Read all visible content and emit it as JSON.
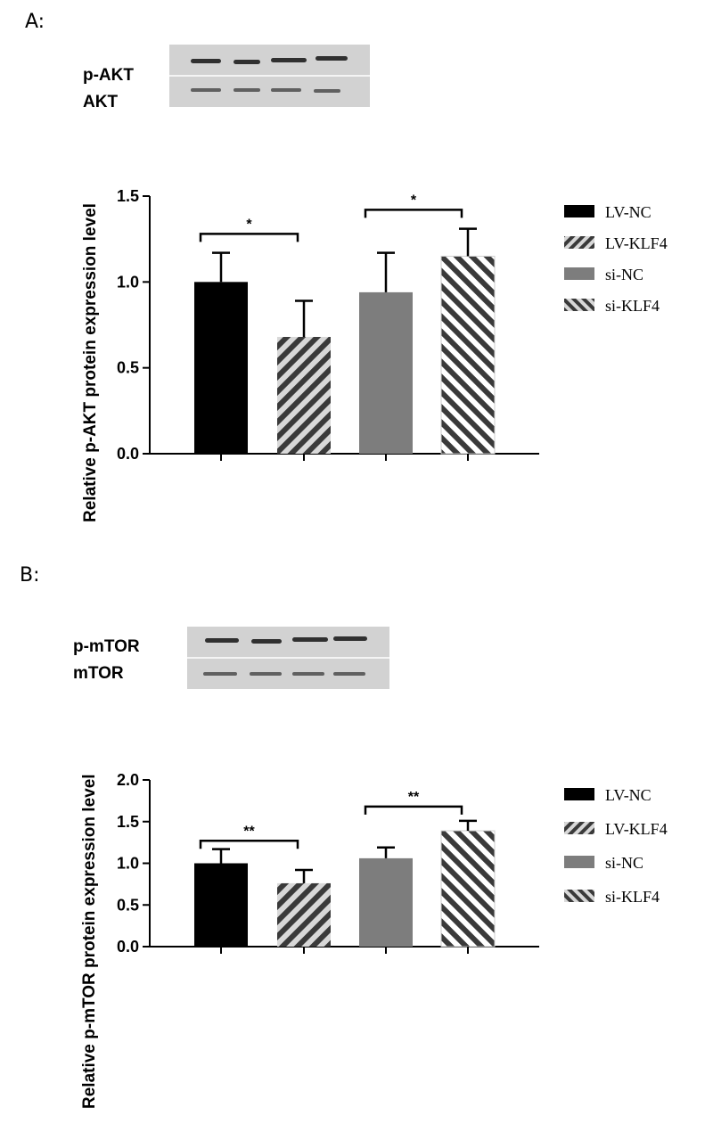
{
  "panels": {
    "a": {
      "label": "A:",
      "blot_rows": [
        "p-AKT",
        "AKT"
      ]
    },
    "b": {
      "label": "B:",
      "blot_rows": [
        "p-mTOR",
        "mTOR"
      ]
    }
  },
  "chart_data": [
    {
      "type": "bar",
      "title": "",
      "xlabel": "",
      "ylabel": "Relative p-AKT protein expression level",
      "ylim": [
        0,
        1.5
      ],
      "yticks": [
        "0.0",
        "0.5",
        "1.0",
        "1.5"
      ],
      "categories": [
        "LV-NC",
        "LV-KLF4",
        "si-NC",
        "si-KLF4"
      ],
      "values": [
        1.0,
        0.68,
        0.94,
        1.15
      ],
      "errors": [
        0.17,
        0.21,
        0.23,
        0.16
      ],
      "significance": [
        {
          "from": 0,
          "to": 1,
          "level": 1.28,
          "label": "*"
        },
        {
          "from": 2,
          "to": 3,
          "level": 1.42,
          "label": "*"
        }
      ],
      "legend": [
        "LV-NC",
        "LV-KLF4",
        "si-NC",
        "si-KLF4"
      ],
      "legend_position": "right",
      "colors": [
        "#000000",
        "#3c3c3c",
        "#7d7d7d",
        "#d6d6d6"
      ],
      "grid": false
    },
    {
      "type": "bar",
      "title": "",
      "xlabel": "",
      "ylabel": "Relative p-mTOR protein expression level",
      "ylim": [
        0,
        2.0
      ],
      "yticks": [
        "0.0",
        "0.5",
        "1.0",
        "1.5",
        "2.0"
      ],
      "categories": [
        "LV-NC",
        "LV-KLF4",
        "si-NC",
        "si-KLF4"
      ],
      "values": [
        1.0,
        0.76,
        1.06,
        1.39
      ],
      "errors": [
        0.17,
        0.16,
        0.13,
        0.12
      ],
      "significance": [
        {
          "from": 0,
          "to": 1,
          "level": 1.27,
          "label": "**"
        },
        {
          "from": 2,
          "to": 3,
          "level": 1.68,
          "label": "**"
        }
      ],
      "legend": [
        "LV-NC",
        "LV-KLF4",
        "si-NC",
        "si-KLF4"
      ],
      "legend_position": "right",
      "colors": [
        "#000000",
        "#3c3c3c",
        "#7d7d7d",
        "#d6d6d6"
      ],
      "grid": false
    }
  ]
}
